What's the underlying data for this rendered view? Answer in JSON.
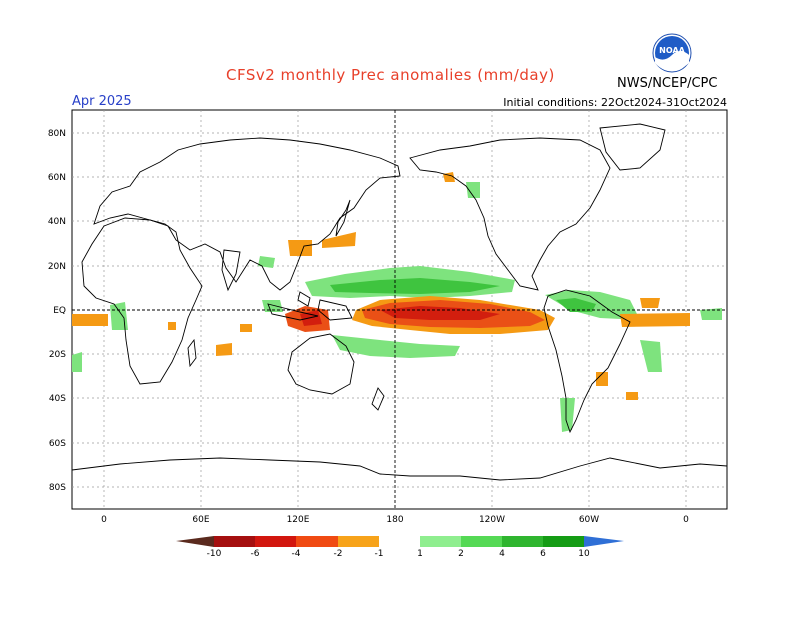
{
  "header": {
    "title": "CFSv2 monthly Prec anomalies (mm/day)",
    "month": "Apr 2025",
    "initial_conditions": "Initial conditions: 22Oct2024-31Oct2024",
    "agency": "NWS/NCEP/CPC",
    "logo_text": "NOAA"
  },
  "axes": {
    "lat_labels": [
      "80N",
      "60N",
      "40N",
      "20N",
      "EQ",
      "20S",
      "40S",
      "60S",
      "80S"
    ],
    "lon_labels": [
      "0",
      "60E",
      "120E",
      "180",
      "120W",
      "60W",
      "0"
    ]
  },
  "colorbar": {
    "labels": [
      "-10",
      "-6",
      "-4",
      "-2",
      "-1",
      "1",
      "2",
      "4",
      "6",
      "10"
    ],
    "colors": [
      "#5a2a1e",
      "#a50f0f",
      "#d2160e",
      "#f04a12",
      "#f58c14",
      "#f7a31a",
      "#ffffff",
      "#8fee8f",
      "#55d955",
      "#2fb52f",
      "#159c15",
      "#2f6fd6"
    ]
  },
  "colors": {
    "wet": "#5ed65e",
    "wet_strong": "#2fb52f",
    "dry": "#f59a14",
    "dry_strong": "#ea5016",
    "dry_core": "#d21e0e"
  }
}
